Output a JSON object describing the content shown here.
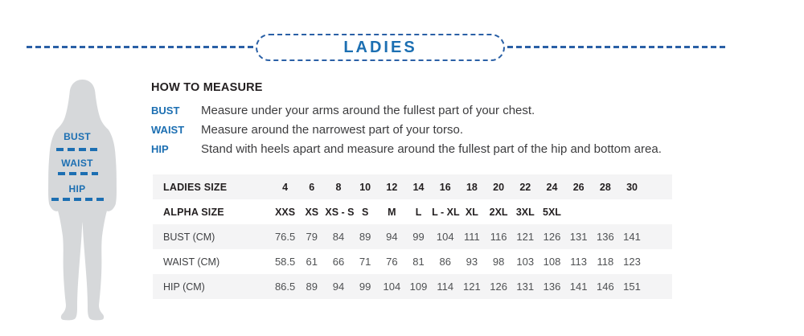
{
  "header": {
    "title": "LADIES"
  },
  "how_to_measure": {
    "title": "HOW TO MEASURE",
    "items": [
      {
        "term": "BUST",
        "description": "Measure under your arms around the fullest part of your chest."
      },
      {
        "term": "WAIST",
        "description": "Measure around the narrowest part of your torso."
      },
      {
        "term": "HIP",
        "description": "Stand with heels apart and measure around the fullest part of the hip and bottom area."
      }
    ]
  },
  "figure": {
    "labels": [
      "BUST",
      "WAIST",
      "HIP"
    ]
  },
  "size_table": {
    "rows": [
      {
        "label": "LADIES SIZE",
        "bold": true,
        "shaded": true,
        "values": [
          "4",
          "6",
          "8",
          "10",
          "12",
          "14",
          "16",
          "18",
          "20",
          "22",
          "24",
          "26",
          "28",
          "30"
        ]
      },
      {
        "label": "ALPHA SIZE",
        "bold": true,
        "shaded": false,
        "values": [
          "XXS",
          "XS",
          "XS - S",
          "S",
          "M",
          "L",
          "L - XL",
          "XL",
          "2XL",
          "3XL",
          "5XL",
          "",
          "",
          ""
        ]
      },
      {
        "label": "BUST (CM)",
        "bold": false,
        "shaded": true,
        "values": [
          "76.5",
          "79",
          "84",
          "89",
          "94",
          "99",
          "104",
          "111",
          "116",
          "121",
          "126",
          "131",
          "136",
          "141"
        ]
      },
      {
        "label": "WAIST (CM)",
        "bold": false,
        "shaded": false,
        "values": [
          "58.5",
          "61",
          "66",
          "71",
          "76",
          "81",
          "86",
          "93",
          "98",
          "103",
          "108",
          "113",
          "118",
          "123"
        ]
      },
      {
        "label": "HIP (CM)",
        "bold": false,
        "shaded": true,
        "values": [
          "86.5",
          "89",
          "94",
          "99",
          "104",
          "109",
          "114",
          "121",
          "126",
          "131",
          "136",
          "141",
          "146",
          "151"
        ]
      }
    ]
  },
  "colors": {
    "accent_blue": "#1c6fb2",
    "dash_blue": "#2a60a6",
    "row_shade": "#f4f4f5",
    "silhouette_gray": "#d6d8da",
    "text_dark": "#231f20",
    "text_gray": "#4f5153"
  }
}
